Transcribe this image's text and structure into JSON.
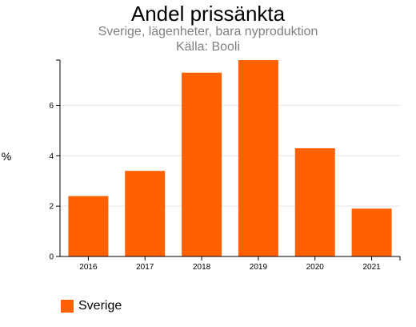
{
  "header": {
    "title": "Andel prissänkta",
    "subtitle": "Sverige, lägenheter, bara nyproduktion",
    "source": "Källa: Booli"
  },
  "chart_data": {
    "type": "bar",
    "title": "Andel prissänkta",
    "subtitle": "Sverige, lägenheter, bara nyproduktion",
    "xlabel": "",
    "ylabel": "%",
    "categories": [
      "2016",
      "2017",
      "2018",
      "2019",
      "2020",
      "2021"
    ],
    "series": [
      {
        "name": "Sverige",
        "values": [
          2.4,
          3.4,
          7.3,
          7.8,
          4.3,
          1.9
        ],
        "color": "#ff6100"
      }
    ],
    "ylim": [
      0,
      7.8
    ],
    "yticks": [
      0,
      2,
      4,
      6
    ],
    "grid": true,
    "legend": "bottom-left"
  }
}
